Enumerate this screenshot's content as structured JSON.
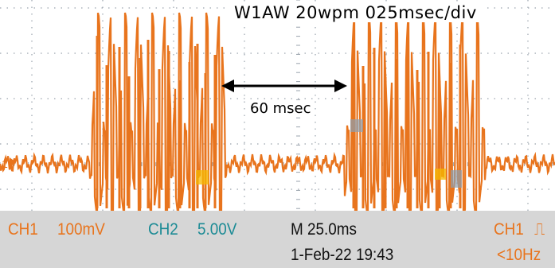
{
  "caption": "W1AW 20wpm 025msec/div",
  "span_label": "60 msec",
  "channel_marker": "1",
  "status": {
    "ch1_label": "CH1",
    "ch1_scale": "100mV",
    "ch2_label": "CH2",
    "ch2_scale": "5.00V",
    "timebase": "M 25.0ms",
    "datetime": "1-Feb-22 19:43",
    "trigger_label": "CH1",
    "trigger_symbol": "⎍",
    "freq": "<10Hz"
  },
  "colors": {
    "trace": "#e8741d",
    "ch2": "#1c8b95",
    "grid": "#9aa3ad",
    "highlight": "#f5b800"
  }
}
